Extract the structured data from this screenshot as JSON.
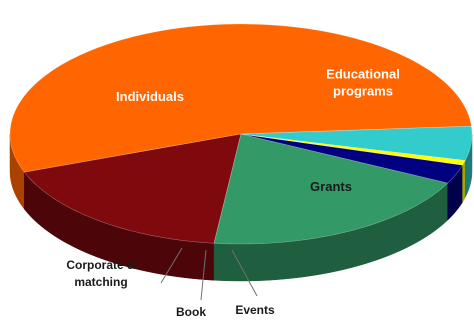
{
  "chart_data": {
    "type": "pie",
    "style": "3d",
    "title": "",
    "slices": [
      {
        "label": "Individuals",
        "label_lines": [
          "Individuals"
        ],
        "value": 54.5,
        "color": "#ff6600",
        "side_color": "#a94100",
        "label_position": "inside"
      },
      {
        "label": "Educational programs",
        "label_lines": [
          "Educational",
          "programs"
        ],
        "value": 17.5,
        "color": "#7f0a0e",
        "side_color": "#4c0609",
        "label_position": "inside"
      },
      {
        "label": "Grants",
        "label_lines": [
          "Grants"
        ],
        "value": 19.5,
        "color": "#339966",
        "side_color": "#1f5e3e",
        "label_position": "inside"
      },
      {
        "label": "Events",
        "label_lines": [
          "Events"
        ],
        "value": 2.8,
        "color": "#000080",
        "side_color": "#00004d",
        "label_position": "outside"
      },
      {
        "label": "Book",
        "label_lines": [
          "Book"
        ],
        "value": 0.7,
        "color": "#ffff00",
        "side_color": "#a6a600",
        "label_position": "outside"
      },
      {
        "label": "Corporate & matching",
        "label_lines": [
          "Corporate &",
          "matching"
        ],
        "value": 5.0,
        "color": "#33cccc",
        "side_color": "#1f7a7a",
        "label_position": "outside"
      }
    ],
    "start_angle_deg": 4.1,
    "direction": "counterclockwise",
    "legend": "none"
  }
}
